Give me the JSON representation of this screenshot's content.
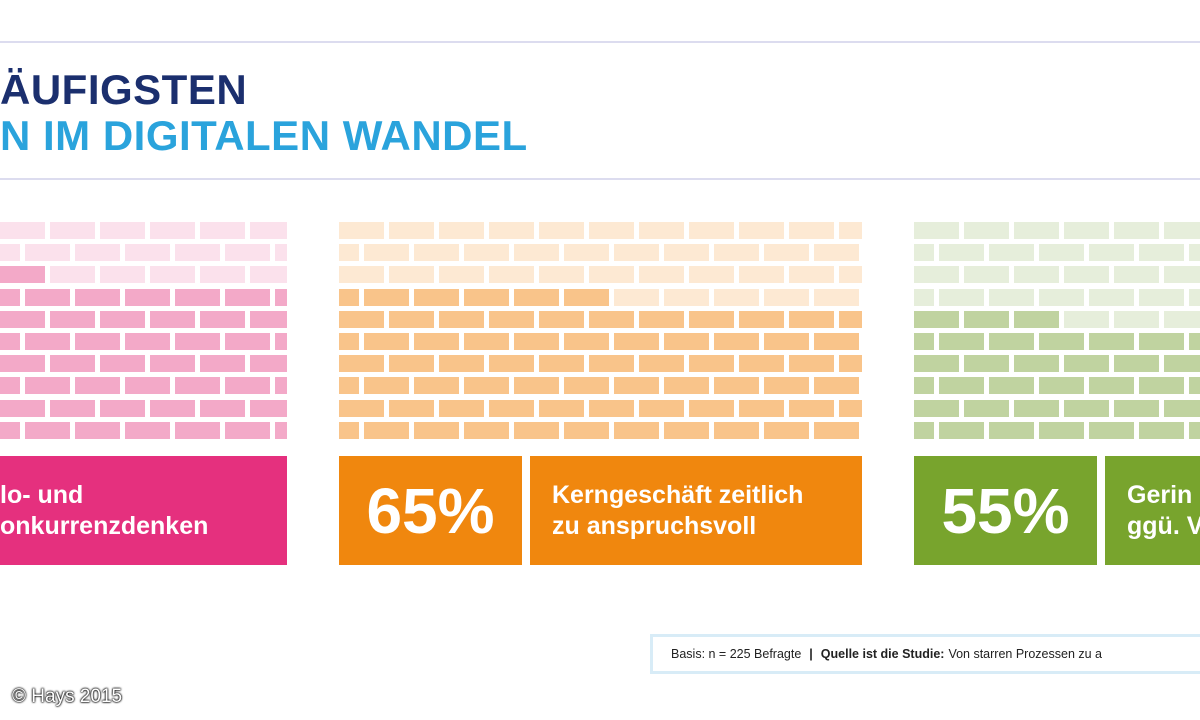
{
  "header": {
    "title_line1": "ÄUFIGSTEN",
    "title_line2": "N IM DIGITALEN WANDEL"
  },
  "chart_data": {
    "type": "bar",
    "categories": [
      "lo- und onkurrenzdenken",
      "Kerngeschäft zeitlich zu anspruchsvoll",
      "Gerin ggü. V"
    ],
    "values": [
      null,
      65,
      55
    ],
    "cards": [
      {
        "value": null,
        "pct_text": "",
        "label_lines": [
          "lo- und",
          "onkurrenzdenken"
        ],
        "color": "#e5307e",
        "brick_on": "#f3a9c8",
        "brick_off": "#fbe1ec"
      },
      {
        "value": 65,
        "pct_text": "65%",
        "label_lines": [
          "Kerngeschäft zeitlich",
          "zu anspruchsvoll"
        ],
        "color": "#f0870e",
        "brick_on": "#f9c48a",
        "brick_off": "#fde9d3"
      },
      {
        "value": 55,
        "pct_text": "55%",
        "label_lines": [
          "Gerin",
          "ggü. V"
        ],
        "color": "#78a42d",
        "brick_on": "#c0d3a0",
        "brick_off": "#e6eedb"
      }
    ]
  },
  "footer": {
    "basis": "Basis: n = 225 Befragte",
    "separator": "|",
    "source_label": "Quelle ist die Studie:",
    "source_text": "Von starren Prozessen zu a"
  },
  "copyright": "© Hays 2015"
}
